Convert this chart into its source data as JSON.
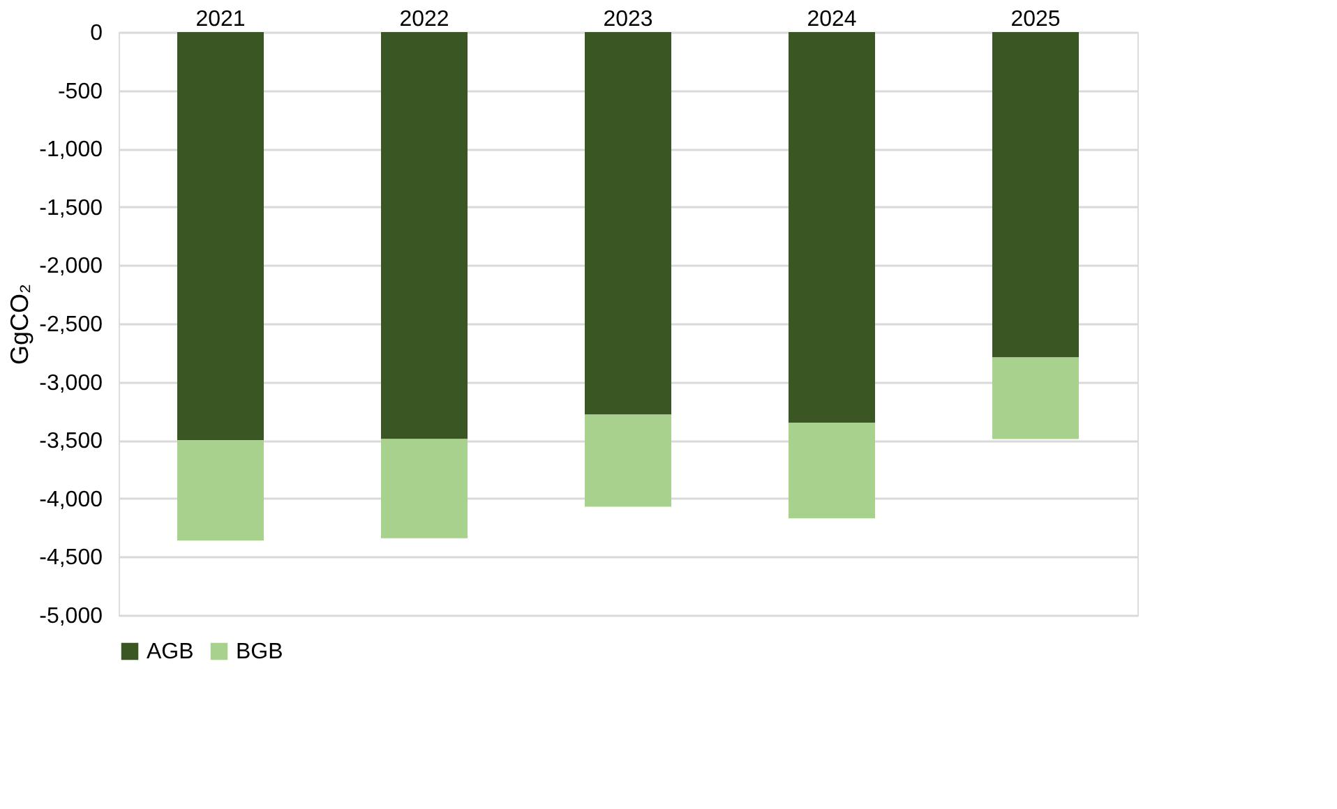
{
  "chart_data": {
    "type": "bar",
    "stacked": true,
    "ylabel": "GgCO₂",
    "categories": [
      "2021",
      "2022",
      "2023",
      "2024",
      "2025"
    ],
    "series": [
      {
        "name": "AGB",
        "color": "#3a5622",
        "values": [
          -3500,
          -3490,
          -3280,
          -3350,
          -2790
        ]
      },
      {
        "name": "BGB",
        "color": "#a9d18e",
        "values": [
          -860,
          -850,
          -790,
          -820,
          -700
        ]
      }
    ],
    "ylim": [
      -5000,
      0
    ],
    "yticks": [
      {
        "value": 0,
        "label": "0"
      },
      {
        "value": -500,
        "label": "-500"
      },
      {
        "value": -1000,
        "label": "-1,000"
      },
      {
        "value": -1500,
        "label": "-1,500"
      },
      {
        "value": -2000,
        "label": "-2,000"
      },
      {
        "value": -2500,
        "label": "-2,500"
      },
      {
        "value": -3000,
        "label": "-3,000"
      },
      {
        "value": -3500,
        "label": "-3,500"
      },
      {
        "value": -4000,
        "label": "-4,000"
      },
      {
        "value": -4500,
        "label": "-4,500"
      },
      {
        "value": -5000,
        "label": "-5,000"
      }
    ],
    "grid": "y",
    "legend": "bottom"
  }
}
